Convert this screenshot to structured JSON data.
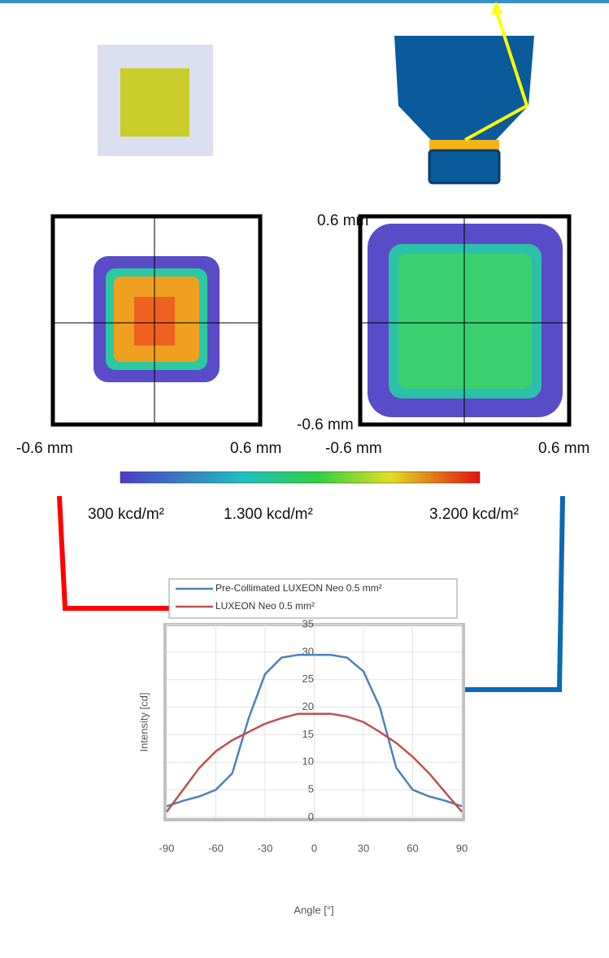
{
  "annotations": [
    "0.6 mm",
    "-0.6 mm",
    "-0.6 mm",
    "0.6 mm",
    "-0.6 mm",
    "0.6 mm",
    "300 kcd/m²",
    "1.300 kcd/m²",
    "3.200 kcd/m²"
  ],
  "chart_data": {
    "type": "line",
    "x_label": "Angle [°]",
    "y_label": "Intensity [cd]",
    "x": [
      -90,
      -80,
      -70,
      -60,
      -50,
      -40,
      -30,
      -20,
      -10,
      0,
      10,
      20,
      30,
      40,
      50,
      60,
      70,
      80,
      90
    ],
    "series": [
      {
        "name": "Pre-Collimated LUXEON Neo 0.5 mm²",
        "color": "#4f81bd",
        "values": [
          2,
          3,
          3.8,
          5,
          8,
          18,
          26,
          29,
          29.5,
          29.5,
          29.5,
          29,
          26.5,
          20,
          9,
          5,
          3.8,
          3,
          2
        ]
      },
      {
        "name": "LUXEON Neo 0.5 mm²",
        "color": "#c0504d",
        "values": [
          1,
          5,
          9,
          12,
          14,
          15.5,
          17,
          18,
          18.8,
          18.8,
          18.8,
          18.3,
          17.3,
          15.5,
          13.5,
          11,
          8,
          4.5,
          1
        ]
      }
    ],
    "xlim": [
      -90,
      90
    ],
    "xticks": [
      -90,
      -60,
      -30,
      0,
      30,
      60,
      90
    ],
    "ylim": [
      0,
      35
    ],
    "yticks": [
      0,
      5,
      10,
      15,
      20,
      25,
      30,
      35
    ],
    "grid": true
  }
}
